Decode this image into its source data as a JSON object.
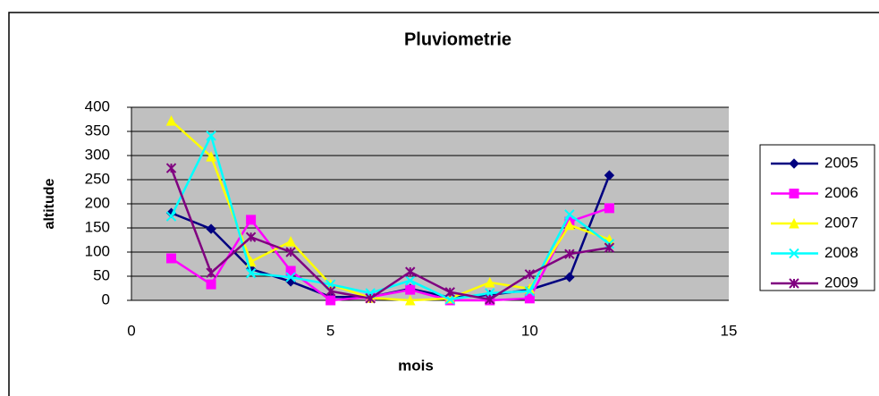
{
  "chart_data": {
    "type": "line",
    "title": "Pluviometrie",
    "x_label": "mois",
    "y_label": "altitude",
    "x": [
      1,
      2,
      3,
      4,
      5,
      6,
      7,
      8,
      9,
      10,
      11,
      12
    ],
    "xlim": [
      0,
      15
    ],
    "xticks": [
      0,
      5,
      10,
      15
    ],
    "ylim": [
      0,
      400
    ],
    "yticks": [
      0,
      50,
      100,
      150,
      200,
      250,
      300,
      350,
      400
    ],
    "grid": true,
    "legend": "right",
    "series": [
      {
        "name": "2005",
        "color": "#000080",
        "marker": "diamond",
        "values": [
          181,
          148,
          65,
          39,
          7,
          7,
          24,
          6,
          11,
          22,
          48,
          259
        ]
      },
      {
        "name": "2006",
        "color": "#ff00ff",
        "marker": "square",
        "values": [
          87,
          33,
          167,
          61,
          0,
          7,
          22,
          0,
          0,
          4,
          163,
          191
        ]
      },
      {
        "name": "2007",
        "color": "#ffff00",
        "marker": "triangle",
        "values": [
          372,
          298,
          80,
          122,
          33,
          5,
          0,
          4,
          37,
          24,
          156,
          126
        ]
      },
      {
        "name": "2008",
        "color": "#00ffff",
        "marker": "x",
        "values": [
          174,
          341,
          56,
          48,
          33,
          15,
          41,
          2,
          15,
          19,
          178,
          117
        ]
      },
      {
        "name": "2009",
        "color": "#800080",
        "marker": "star",
        "values": [
          274,
          57,
          131,
          100,
          19,
          4,
          59,
          17,
          2,
          54,
          96,
          109
        ]
      }
    ]
  }
}
